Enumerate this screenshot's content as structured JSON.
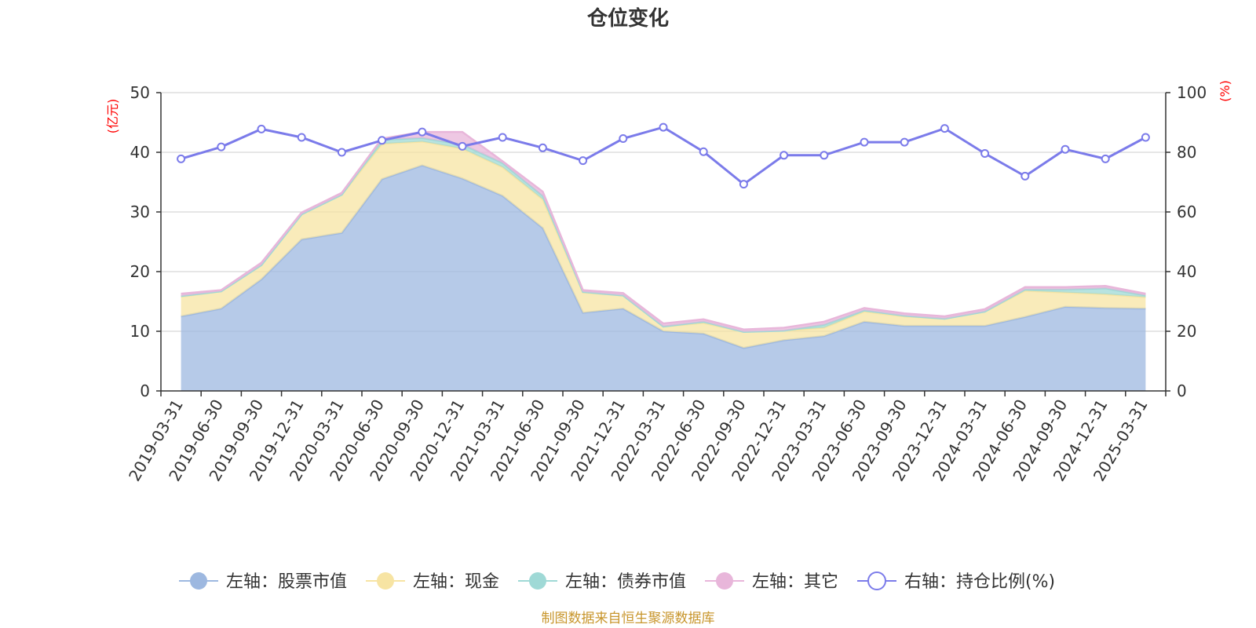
{
  "chart_data": {
    "type": "area",
    "title": "仓位变化",
    "left_axis_unit": "(亿元)",
    "right_axis_unit": "(%)",
    "left_ylim": [
      0,
      50
    ],
    "left_ticks": [
      0,
      10,
      20,
      30,
      40,
      50
    ],
    "right_ylim": [
      0,
      100
    ],
    "right_ticks": [
      0,
      20,
      40,
      60,
      80,
      100
    ],
    "grid": true,
    "legend_position": "bottom",
    "categories": [
      "2019-03-31",
      "2019-06-30",
      "2019-09-30",
      "2019-12-31",
      "2020-03-31",
      "2020-06-30",
      "2020-09-30",
      "2020-12-31",
      "2021-03-31",
      "2021-06-30",
      "2021-09-30",
      "2021-12-31",
      "2022-03-31",
      "2022-06-30",
      "2022-09-30",
      "2022-12-31",
      "2023-03-31",
      "2023-06-30",
      "2023-09-30",
      "2023-12-31",
      "2024-03-31",
      "2024-06-30",
      "2024-09-30",
      "2024-12-31",
      "2025-03-31"
    ],
    "series": [
      {
        "name": "左轴：股票市值",
        "axis": "left",
        "type": "area",
        "color": "#9db8e0",
        "values": [
          12.5,
          13.8,
          18.7,
          25.4,
          26.5,
          35.5,
          37.8,
          35.6,
          32.7,
          27.3,
          13.1,
          13.8,
          10.0,
          9.6,
          7.2,
          8.5,
          9.2,
          11.6,
          10.9,
          10.9,
          10.9,
          12.4,
          14.1,
          13.9,
          13.8
        ]
      },
      {
        "name": "左轴：现金",
        "axis": "left",
        "type": "area",
        "color": "#f7e4a3",
        "values": [
          3.3,
          2.9,
          2.4,
          4.2,
          6.4,
          5.9,
          4.0,
          5.0,
          4.8,
          4.8,
          3.4,
          2.2,
          0.8,
          1.8,
          2.7,
          1.6,
          1.4,
          1.7,
          1.6,
          1.2,
          2.4,
          4.4,
          2.4,
          2.3,
          1.9
        ]
      },
      {
        "name": "左轴：债券市值",
        "axis": "left",
        "type": "area",
        "color": "#9fd9d6",
        "values": [
          0.1,
          0.0,
          0.0,
          0.0,
          0.0,
          0.7,
          0.6,
          0.7,
          0.7,
          0.6,
          0.1,
          0.0,
          0.0,
          0.2,
          0.0,
          0.0,
          0.5,
          0.2,
          0.1,
          0.0,
          0.0,
          0.2,
          0.5,
          1.0,
          0.3
        ]
      },
      {
        "name": "左轴：其它",
        "axis": "left",
        "type": "area",
        "color": "#e8b6da",
        "values": [
          0.4,
          0.2,
          0.4,
          0.3,
          0.3,
          0.2,
          1.0,
          2.1,
          0.3,
          0.7,
          0.3,
          0.4,
          0.5,
          0.4,
          0.4,
          0.5,
          0.5,
          0.4,
          0.4,
          0.4,
          0.4,
          0.4,
          0.4,
          0.4,
          0.3
        ]
      },
      {
        "name": "右轴：持仓比例(%)",
        "axis": "right",
        "type": "line",
        "color": "#7b7bea",
        "values": [
          77.8,
          81.8,
          87.8,
          85.0,
          80.0,
          84.0,
          86.8,
          82.0,
          85.0,
          81.5,
          77.2,
          84.6,
          88.4,
          80.2,
          69.3,
          79.0,
          79.0,
          83.4,
          83.4,
          88.0,
          79.6,
          72.0,
          81.0,
          77.8,
          85.0
        ]
      }
    ],
    "source": "制图数据来自恒生聚源数据库"
  }
}
